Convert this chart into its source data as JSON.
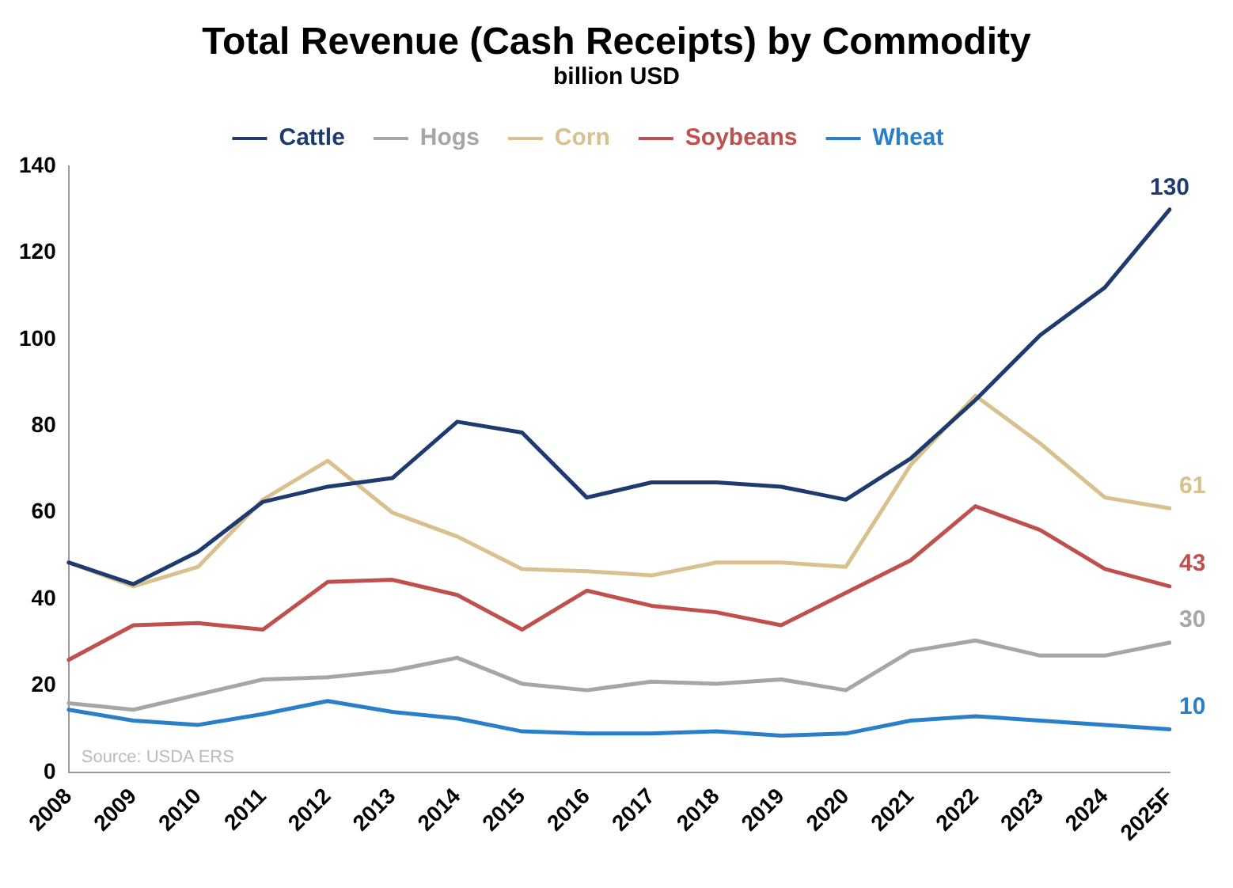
{
  "chart_data": {
    "type": "line",
    "title": "Total Revenue (Cash Receipts) by Commodity",
    "subtitle": "billion USD",
    "categories": [
      "2008",
      "2009",
      "2010",
      "2011",
      "2012",
      "2013",
      "2014",
      "2015",
      "2016",
      "2017",
      "2018",
      "2019",
      "2020",
      "2021",
      "2022",
      "2023",
      "2024",
      "2025F"
    ],
    "series": [
      {
        "name": "Cattle",
        "color": "#1f3a6e",
        "values": [
          48.5,
          43.5,
          51,
          62.5,
          66,
          68,
          81,
          78.5,
          63.5,
          67,
          67,
          66,
          63,
          72.5,
          86,
          101,
          112,
          130
        ],
        "value_labels": [
          null,
          null,
          null,
          null,
          null,
          null,
          null,
          null,
          null,
          null,
          null,
          null,
          null,
          null,
          null,
          null,
          null,
          "130"
        ]
      },
      {
        "name": "Hogs",
        "color": "#a6a6a6",
        "values": [
          16,
          14.5,
          18,
          21.5,
          22,
          23.5,
          26.5,
          20.5,
          19,
          21,
          20.5,
          21.5,
          19,
          28,
          30.5,
          27,
          27,
          30
        ],
        "value_labels": [
          null,
          null,
          null,
          null,
          null,
          null,
          null,
          null,
          null,
          null,
          null,
          null,
          null,
          null,
          null,
          null,
          null,
          "30"
        ]
      },
      {
        "name": "Corn",
        "color": "#d9c08f",
        "values": [
          48.5,
          43,
          47.5,
          63,
          72,
          60,
          54.5,
          47,
          46.5,
          45.5,
          48.5,
          48.5,
          47.5,
          71,
          87,
          76,
          63.5,
          61
        ],
        "value_labels": [
          null,
          null,
          null,
          null,
          null,
          null,
          null,
          null,
          null,
          null,
          null,
          null,
          null,
          null,
          null,
          null,
          null,
          "61"
        ]
      },
      {
        "name": "Soybeans",
        "color": "#c0504d",
        "values": [
          26,
          34,
          34.5,
          33,
          44,
          44.5,
          41,
          33,
          42,
          38.5,
          37,
          34,
          41.5,
          49,
          61.5,
          56,
          47,
          43
        ],
        "value_labels": [
          null,
          null,
          null,
          null,
          null,
          null,
          null,
          null,
          null,
          null,
          null,
          null,
          null,
          null,
          null,
          null,
          null,
          "43"
        ]
      },
      {
        "name": "Wheat",
        "color": "#2a7fc9",
        "values": [
          14.5,
          12,
          11,
          13.5,
          16.5,
          14,
          12.5,
          9.5,
          9,
          9,
          9.5,
          8.5,
          9,
          12,
          13,
          12,
          11,
          10
        ],
        "value_labels": [
          null,
          null,
          null,
          null,
          null,
          null,
          null,
          null,
          null,
          null,
          null,
          null,
          null,
          null,
          null,
          null,
          null,
          "10"
        ]
      }
    ],
    "ylim": [
      0,
      140
    ],
    "yticks": [
      0,
      20,
      40,
      60,
      80,
      100,
      120,
      140
    ],
    "grid": false,
    "legend": "top",
    "marker": "none",
    "line_style": "solid",
    "annotations": [
      "Source: USDA ERS"
    ]
  }
}
